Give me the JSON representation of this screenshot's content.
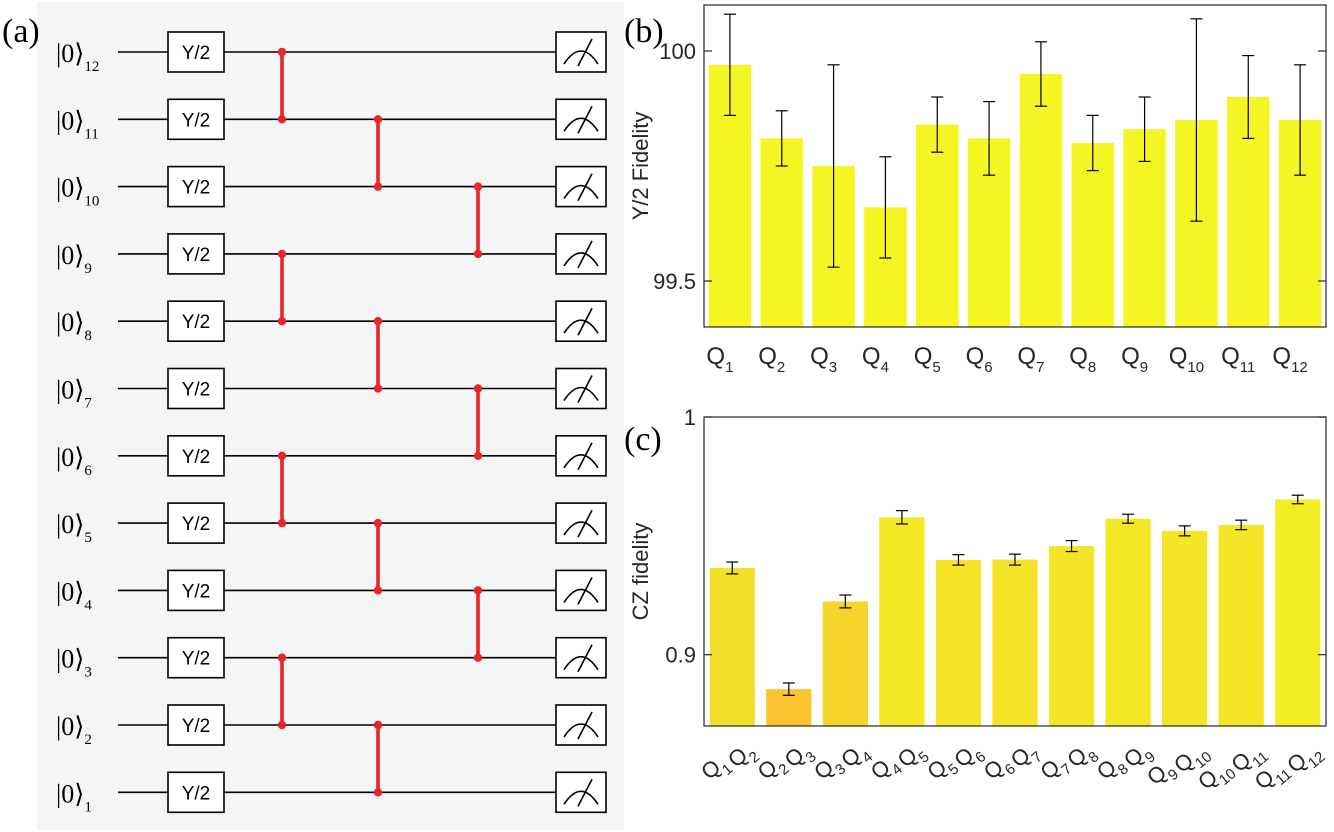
{
  "panels": {
    "a": "(a)",
    "b": "(b)",
    "c": "(c)"
  },
  "circuit": {
    "qubit_ket": "|0⟩",
    "qubit_indices": [
      "12",
      "11",
      "10",
      "9",
      "8",
      "7",
      "6",
      "5",
      "4",
      "3",
      "2",
      "1"
    ],
    "gate_label": "Y/2",
    "cz_color": "#e8252a",
    "cz_layers": [
      [
        [
          12,
          11
        ],
        [
          9,
          8
        ],
        [
          6,
          5
        ],
        [
          3,
          2
        ]
      ],
      [
        [
          11,
          10
        ],
        [
          8,
          7
        ],
        [
          5,
          4
        ],
        [
          2,
          1
        ]
      ],
      [
        [
          10,
          9
        ],
        [
          7,
          6
        ],
        [
          4,
          3
        ]
      ]
    ]
  },
  "chart_data": [
    {
      "type": "bar",
      "panel": "(b)",
      "ylabel": "Y/2 Fidelity",
      "ylim": [
        99.4,
        100.1
      ],
      "yticks": [
        99.5,
        100
      ],
      "ytick_labels": [
        "99.5",
        "100"
      ],
      "categories": [
        {
          "base": "Q",
          "sub": "1"
        },
        {
          "base": "Q",
          "sub": "2"
        },
        {
          "base": "Q",
          "sub": "3"
        },
        {
          "base": "Q",
          "sub": "4"
        },
        {
          "base": "Q",
          "sub": "5"
        },
        {
          "base": "Q",
          "sub": "6"
        },
        {
          "base": "Q",
          "sub": "7"
        },
        {
          "base": "Q",
          "sub": "8"
        },
        {
          "base": "Q",
          "sub": "9"
        },
        {
          "base": "Q",
          "sub": "10"
        },
        {
          "base": "Q",
          "sub": "11"
        },
        {
          "base": "Q",
          "sub": "12"
        }
      ],
      "values": [
        99.97,
        99.81,
        99.75,
        99.66,
        99.84,
        99.81,
        99.95,
        99.8,
        99.83,
        99.85,
        99.9,
        99.85
      ],
      "errors": [
        0.11,
        0.06,
        0.22,
        0.11,
        0.06,
        0.08,
        0.07,
        0.06,
        0.07,
        0.22,
        0.09,
        0.12
      ],
      "bar_color": "#f5f523"
    },
    {
      "type": "bar",
      "panel": "(c)",
      "ylabel": "CZ fidelity",
      "ylim": [
        0.87,
        1.0
      ],
      "yticks": [
        0.9,
        1.0
      ],
      "ytick_labels": [
        "0.9",
        "1"
      ],
      "categories": [
        [
          {
            "base": "Q",
            "sub": "1"
          },
          {
            "base": "Q",
            "sub": "2"
          }
        ],
        [
          {
            "base": "Q",
            "sub": "2"
          },
          {
            "base": "Q",
            "sub": "3"
          }
        ],
        [
          {
            "base": "Q",
            "sub": "3"
          },
          {
            "base": "Q",
            "sub": "4"
          }
        ],
        [
          {
            "base": "Q",
            "sub": "4"
          },
          {
            "base": "Q",
            "sub": "5"
          }
        ],
        [
          {
            "base": "Q",
            "sub": "5"
          },
          {
            "base": "Q",
            "sub": "6"
          }
        ],
        [
          {
            "base": "Q",
            "sub": "6"
          },
          {
            "base": "Q",
            "sub": "7"
          }
        ],
        [
          {
            "base": "Q",
            "sub": "7"
          },
          {
            "base": "Q",
            "sub": "8"
          }
        ],
        [
          {
            "base": "Q",
            "sub": "8"
          },
          {
            "base": "Q",
            "sub": "9"
          }
        ],
        [
          {
            "base": "Q",
            "sub": "9"
          },
          {
            "base": "Q",
            "sub": "10"
          }
        ],
        [
          {
            "base": "Q",
            "sub": "10"
          },
          {
            "base": "Q",
            "sub": "11"
          }
        ],
        [
          {
            "base": "Q",
            "sub": "11"
          },
          {
            "base": "Q",
            "sub": "12"
          }
        ]
      ],
      "values": [
        0.9365,
        0.8855,
        0.9224,
        0.9578,
        0.9399,
        0.94,
        0.9457,
        0.9572,
        0.9521,
        0.9546,
        0.9653
      ],
      "errors": [
        0.0025,
        0.0026,
        0.0027,
        0.0028,
        0.0022,
        0.0023,
        0.0023,
        0.0019,
        0.0021,
        0.002,
        0.0018
      ],
      "bar_colors": [
        "#f2df2a",
        "#fbc232",
        "#f5d52c",
        "#f4e826",
        "#f4e326",
        "#f4e326",
        "#f4e526",
        "#f4e726",
        "#f4e526",
        "#f4e626",
        "#f2ec23"
      ]
    }
  ]
}
